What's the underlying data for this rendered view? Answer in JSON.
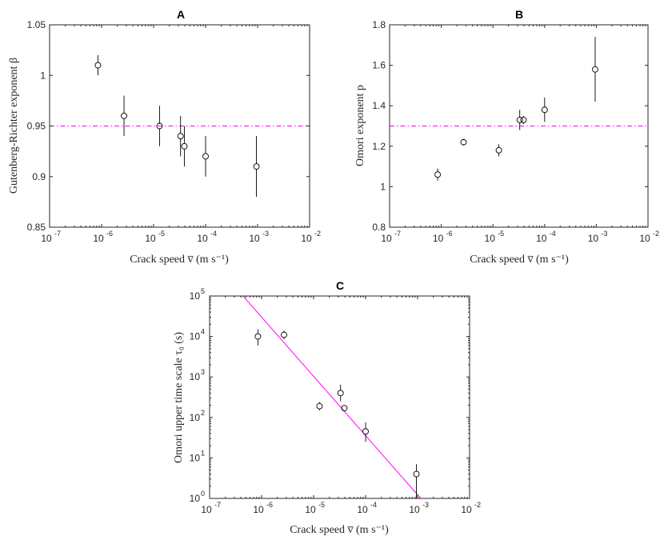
{
  "colors": {
    "reference": "#ff00ff",
    "marker": "#000000",
    "axis": "#262626"
  },
  "chart_data": [
    {
      "id": "A",
      "type": "scatter",
      "title": "A",
      "xlabel": "Crack speed v̅ (m s⁻¹)",
      "ylabel": "Gutenberg-Richter exponent β",
      "xscale": "log",
      "yscale": "linear",
      "xlim": [
        1e-07,
        0.01
      ],
      "ylim": [
        0.85,
        1.05
      ],
      "xticks": [
        "10^-7",
        "10^-6",
        "10^-5",
        "10^-4",
        "10^-3",
        "10^-2"
      ],
      "yticks": [
        "0.85",
        "0.9",
        "0.95",
        "1",
        "1.05"
      ],
      "reference_line": {
        "style": "dash-dot",
        "y": 0.95
      },
      "points": [
        {
          "x": 8.5e-07,
          "y": 1.01,
          "err": [
            1.0,
            1.02
          ]
        },
        {
          "x": 2.7e-06,
          "y": 0.96,
          "err": [
            0.94,
            0.98
          ]
        },
        {
          "x": 1.3e-05,
          "y": 0.95,
          "err": [
            0.93,
            0.97
          ]
        },
        {
          "x": 3.3e-05,
          "y": 0.94,
          "err": [
            0.92,
            0.96
          ]
        },
        {
          "x": 3.9e-05,
          "y": 0.93,
          "err": [
            0.91,
            0.95
          ]
        },
        {
          "x": 0.0001,
          "y": 0.92,
          "err": [
            0.9,
            0.94
          ]
        },
        {
          "x": 0.00095,
          "y": 0.91,
          "err": [
            0.88,
            0.94
          ]
        }
      ]
    },
    {
      "id": "B",
      "type": "scatter",
      "title": "B",
      "xlabel": "Crack speed v̅ (m s⁻¹)",
      "ylabel": "Omori exponent p",
      "xscale": "log",
      "yscale": "linear",
      "xlim": [
        1e-07,
        0.01
      ],
      "ylim": [
        0.8,
        1.8
      ],
      "xticks": [
        "10^-7",
        "10^-6",
        "10^-5",
        "10^-4",
        "10^-3",
        "10^-2"
      ],
      "yticks": [
        "0.8",
        "1",
        "1.2",
        "1.4",
        "1.6",
        "1.8"
      ],
      "reference_line": {
        "style": "dash-dot",
        "y": 1.3
      },
      "points": [
        {
          "x": 8.5e-07,
          "y": 1.06,
          "err": [
            1.03,
            1.09
          ]
        },
        {
          "x": 2.7e-06,
          "y": 1.22,
          "err": [
            1.21,
            1.23
          ]
        },
        {
          "x": 1.3e-05,
          "y": 1.18,
          "err": [
            1.15,
            1.21
          ]
        },
        {
          "x": 3.3e-05,
          "y": 1.33,
          "err": [
            1.28,
            1.38
          ]
        },
        {
          "x": 3.9e-05,
          "y": 1.33,
          "err": [
            1.31,
            1.35
          ]
        },
        {
          "x": 0.0001,
          "y": 1.38,
          "err": [
            1.32,
            1.44
          ]
        },
        {
          "x": 0.00095,
          "y": 1.58,
          "err": [
            1.42,
            1.74
          ]
        }
      ]
    },
    {
      "id": "C",
      "type": "scatter",
      "title": "C",
      "xlabel": "Crack speed v̅ (m s⁻¹)",
      "ylabel": "Omori upper time scale τ₀ (s)",
      "xscale": "log",
      "yscale": "log",
      "xlim": [
        1e-07,
        0.01
      ],
      "ylim": [
        1,
        100000
      ],
      "xticks": [
        "10^-7",
        "10^-6",
        "10^-5",
        "10^-4",
        "10^-3",
        "10^-2"
      ],
      "yticks": [
        "10^0",
        "10^1",
        "10^2",
        "10^3",
        "10^4",
        "10^5"
      ],
      "reference_line": {
        "style": "solid",
        "points": [
          [
            4.4e-07,
            100000
          ],
          [
            0.00115,
            1
          ]
        ]
      },
      "points": [
        {
          "x": 8.5e-07,
          "y": 10000,
          "err": [
            6000,
            15000
          ]
        },
        {
          "x": 2.7e-06,
          "y": 11000,
          "err": [
            8500,
            14000
          ]
        },
        {
          "x": 1.3e-05,
          "y": 190,
          "err": [
            150,
            240
          ]
        },
        {
          "x": 3.3e-05,
          "y": 400,
          "err": [
            250,
            650
          ]
        },
        {
          "x": 3.9e-05,
          "y": 170,
          "err": [
            145,
            200
          ]
        },
        {
          "x": 0.0001,
          "y": 45,
          "err": [
            25,
            75
          ]
        },
        {
          "x": 0.00095,
          "y": 4,
          "err": [
            1,
            7
          ]
        }
      ]
    }
  ]
}
